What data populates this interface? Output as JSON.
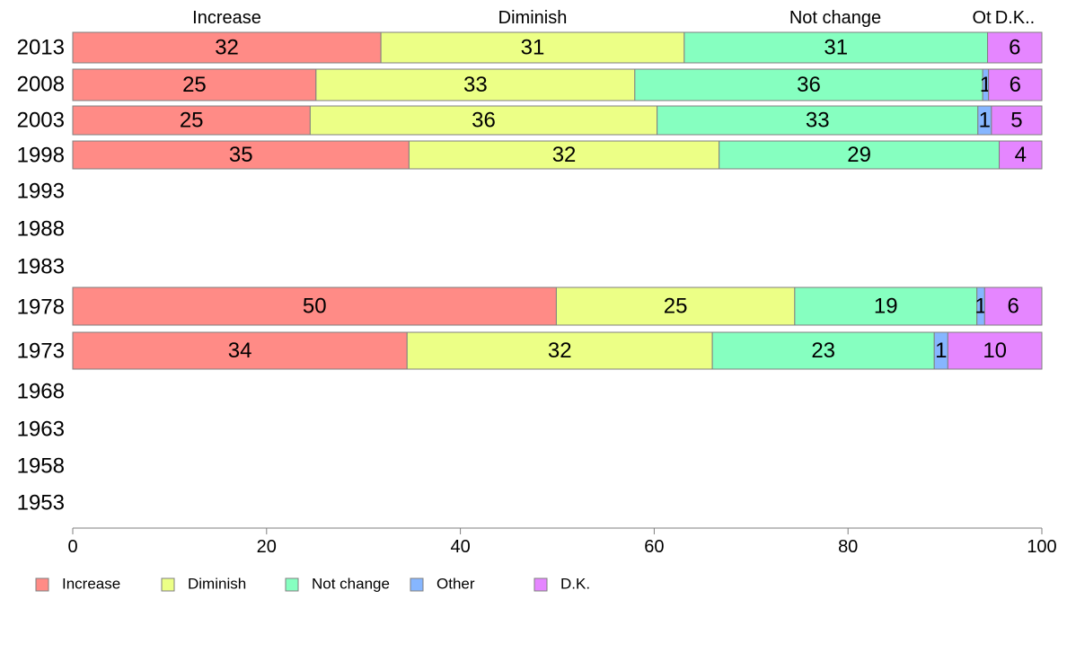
{
  "chart_data": {
    "type": "bar",
    "orientation": "horizontal",
    "stacked": true,
    "categories": [
      "2013",
      "2008",
      "2003",
      "1998",
      "1993",
      "1988",
      "1983",
      "1978",
      "1973",
      "1968",
      "1963",
      "1958",
      "1953"
    ],
    "series": [
      {
        "name": "Increase",
        "values": [
          32,
          25,
          25,
          35,
          null,
          null,
          null,
          50,
          34,
          null,
          null,
          null,
          null
        ]
      },
      {
        "name": "Diminish",
        "values": [
          31,
          33,
          36,
          32,
          null,
          null,
          null,
          25,
          32,
          null,
          null,
          null,
          null
        ]
      },
      {
        "name": "Not change",
        "values": [
          31,
          36,
          33,
          29,
          null,
          null,
          null,
          19,
          23,
          null,
          null,
          null,
          null
        ]
      },
      {
        "name": "Other",
        "values": [
          0,
          1,
          1,
          0,
          null,
          null,
          null,
          1,
          1,
          null,
          null,
          null,
          null
        ]
      },
      {
        "name": "D.K.",
        "values": [
          6,
          6,
          5,
          4,
          null,
          null,
          null,
          6,
          10,
          null,
          null,
          null,
          null
        ]
      }
    ],
    "exact_values": {
      "2013": [
        31.8,
        31.3,
        31.3,
        0.0,
        5.6
      ],
      "2008": [
        25.1,
        32.9,
        35.9,
        0.6,
        5.5
      ],
      "2003": [
        24.5,
        35.8,
        33.1,
        1.4,
        5.2
      ],
      "1998": [
        34.7,
        32.0,
        28.9,
        0.0,
        4.4
      ],
      "1978": [
        49.9,
        24.6,
        18.8,
        0.8,
        5.9
      ],
      "1973": [
        34.5,
        31.5,
        22.9,
        1.4,
        9.7
      ]
    },
    "xlim": [
      0,
      100
    ],
    "xticks": [
      "0",
      "20",
      "40",
      "60",
      "80",
      "100"
    ],
    "top_category_labels": [
      "Increase",
      "Diminish",
      "Not change",
      "Ot",
      "D.K.."
    ],
    "legend_position": "bottom-left",
    "grid": false
  },
  "colors": {
    "Increase": "#FF8B86",
    "Diminish": "#ECFF86",
    "Not change": "#86FFC0",
    "Other": "#86B6FF",
    "D.K.": "#E586FF",
    "edge": "#7f7f7f"
  }
}
